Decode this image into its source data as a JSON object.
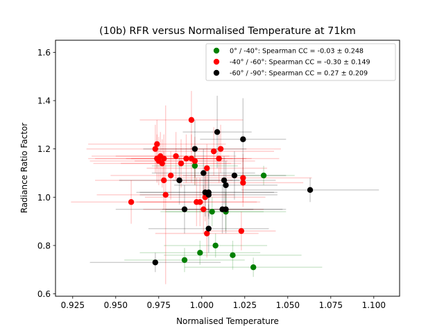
{
  "chart_data": {
    "type": "scatter",
    "title": "(10b) RFR versus Normalised Temperature at 71km",
    "xlabel": "Normalised Temperature",
    "ylabel": "Radiance Ratio Factor",
    "xlim": [
      0.915,
      1.115
    ],
    "ylim": [
      0.59,
      1.65
    ],
    "xticks": [
      "0.925",
      "0.950",
      "0.975",
      "1.000",
      "1.025",
      "1.050",
      "1.075",
      "1.100"
    ],
    "yticks": [
      "0.6",
      "0.8",
      "1.0",
      "1.2",
      "1.4",
      "1.6"
    ],
    "grid": false,
    "legend_position": "upper right",
    "series": [
      {
        "name": "0° / -40°: Spearman CC = -0.03 ± 0.248",
        "color": "#008000",
        "points": [
          {
            "x": 0.996,
            "y": 1.13,
            "xerr": 0.025,
            "yerr": 0.08
          },
          {
            "x": 1.006,
            "y": 0.94,
            "xerr": 0.03,
            "yerr": 0.06
          },
          {
            "x": 1.014,
            "y": 0.94,
            "xerr": 0.035,
            "yerr": 0.08
          },
          {
            "x": 1.036,
            "y": 1.09,
            "xerr": 0.018,
            "yerr": 0.04
          },
          {
            "x": 0.99,
            "y": 0.74,
            "xerr": 0.035,
            "yerr": 0.05
          },
          {
            "x": 0.999,
            "y": 0.77,
            "xerr": 0.035,
            "yerr": 0.05
          },
          {
            "x": 1.008,
            "y": 0.8,
            "xerr": 0.03,
            "yerr": 0.05
          },
          {
            "x": 1.018,
            "y": 0.76,
            "xerr": 0.04,
            "yerr": 0.06
          },
          {
            "x": 1.03,
            "y": 0.71,
            "xerr": 0.04,
            "yerr": 0.04
          }
        ]
      },
      {
        "name": "-40° / -60°: Spearman CC = -0.30 ± 0.149",
        "color": "#ff0000",
        "points": [
          {
            "x": 0.994,
            "y": 1.32,
            "xerr": 0.03,
            "yerr": 0.12
          },
          {
            "x": 0.974,
            "y": 1.22,
            "xerr": 0.04,
            "yerr": 0.1
          },
          {
            "x": 0.973,
            "y": 1.2,
            "xerr": 0.04,
            "yerr": 0.1
          },
          {
            "x": 0.976,
            "y": 1.17,
            "xerr": 0.04,
            "yerr": 0.1
          },
          {
            "x": 0.978,
            "y": 1.16,
            "xerr": 0.04,
            "yerr": 0.1
          },
          {
            "x": 0.975,
            "y": 1.15,
            "xerr": 0.04,
            "yerr": 0.1
          },
          {
            "x": 0.974,
            "y": 1.16,
            "xerr": 0.04,
            "yerr": 0.1
          },
          {
            "x": 0.977,
            "y": 1.14,
            "xerr": 0.04,
            "yerr": 0.1
          },
          {
            "x": 0.985,
            "y": 1.17,
            "xerr": 0.035,
            "yerr": 0.1
          },
          {
            "x": 0.991,
            "y": 1.16,
            "xerr": 0.035,
            "yerr": 0.1
          },
          {
            "x": 0.994,
            "y": 1.16,
            "xerr": 0.035,
            "yerr": 0.1
          },
          {
            "x": 0.996,
            "y": 1.15,
            "xerr": 0.035,
            "yerr": 0.1
          },
          {
            "x": 0.988,
            "y": 1.14,
            "xerr": 0.035,
            "yerr": 0.1
          },
          {
            "x": 0.982,
            "y": 1.09,
            "xerr": 0.035,
            "yerr": 0.1
          },
          {
            "x": 0.978,
            "y": 1.07,
            "xerr": 0.04,
            "yerr": 0.12
          },
          {
            "x": 0.979,
            "y": 1.01,
            "xerr": 0.04,
            "yerr": 0.37
          },
          {
            "x": 0.959,
            "y": 0.98,
            "xerr": 0.035,
            "yerr": 0.09
          },
          {
            "x": 0.997,
            "y": 0.98,
            "xerr": 0.035,
            "yerr": 0.1
          },
          {
            "x": 0.999,
            "y": 0.98,
            "xerr": 0.035,
            "yerr": 0.1
          },
          {
            "x": 1.001,
            "y": 0.95,
            "xerr": 0.035,
            "yerr": 0.1
          },
          {
            "x": 1.003,
            "y": 1.12,
            "xerr": 0.035,
            "yerr": 0.1
          },
          {
            "x": 1.002,
            "y": 1.0,
            "xerr": 0.035,
            "yerr": 0.1
          },
          {
            "x": 1.003,
            "y": 0.85,
            "xerr": 0.03,
            "yerr": 0.1
          },
          {
            "x": 1.007,
            "y": 1.19,
            "xerr": 0.035,
            "yerr": 0.1
          },
          {
            "x": 1.011,
            "y": 1.2,
            "xerr": 0.035,
            "yerr": 0.1
          },
          {
            "x": 1.01,
            "y": 1.16,
            "xerr": 0.035,
            "yerr": 0.1
          },
          {
            "x": 1.024,
            "y": 1.08,
            "xerr": 0.04,
            "yerr": 0.1
          },
          {
            "x": 1.024,
            "y": 1.06,
            "xerr": 0.035,
            "yerr": 0.1
          },
          {
            "x": 1.023,
            "y": 0.86,
            "xerr": 0.02,
            "yerr": 0.08
          }
        ]
      },
      {
        "name": "-60° / -90°: Spearman CC =  0.27 ± 0.209",
        "color": "#000000",
        "points": [
          {
            "x": 1.009,
            "y": 1.27,
            "xerr": 0.02,
            "yerr": 0.15
          },
          {
            "x": 1.024,
            "y": 1.24,
            "xerr": 0.025,
            "yerr": 0.17
          },
          {
            "x": 0.996,
            "y": 1.2,
            "xerr": 0.03,
            "yerr": 0.12
          },
          {
            "x": 1.001,
            "y": 1.1,
            "xerr": 0.03,
            "yerr": 0.1
          },
          {
            "x": 1.019,
            "y": 1.09,
            "xerr": 0.03,
            "yerr": 0.1
          },
          {
            "x": 0.987,
            "y": 1.07,
            "xerr": 0.035,
            "yerr": 0.1
          },
          {
            "x": 1.013,
            "y": 1.07,
            "xerr": 0.03,
            "yerr": 0.1
          },
          {
            "x": 1.014,
            "y": 1.05,
            "xerr": 0.03,
            "yerr": 0.1
          },
          {
            "x": 1.002,
            "y": 1.02,
            "xerr": 0.04,
            "yerr": 0.1
          },
          {
            "x": 1.004,
            "y": 1.02,
            "xerr": 0.04,
            "yerr": 0.1
          },
          {
            "x": 1.004,
            "y": 1.01,
            "xerr": 0.04,
            "yerr": 0.1
          },
          {
            "x": 1.063,
            "y": 1.03,
            "xerr": 0.04,
            "yerr": 0.05
          },
          {
            "x": 0.99,
            "y": 0.95,
            "xerr": 0.04,
            "yerr": 0.1
          },
          {
            "x": 1.012,
            "y": 0.95,
            "xerr": 0.035,
            "yerr": 0.1
          },
          {
            "x": 1.014,
            "y": 0.95,
            "xerr": 0.035,
            "yerr": 0.1
          },
          {
            "x": 1.004,
            "y": 0.87,
            "xerr": 0.035,
            "yerr": 0.1
          },
          {
            "x": 0.973,
            "y": 0.73,
            "xerr": 0.038,
            "yerr": 0.04
          }
        ]
      }
    ]
  }
}
